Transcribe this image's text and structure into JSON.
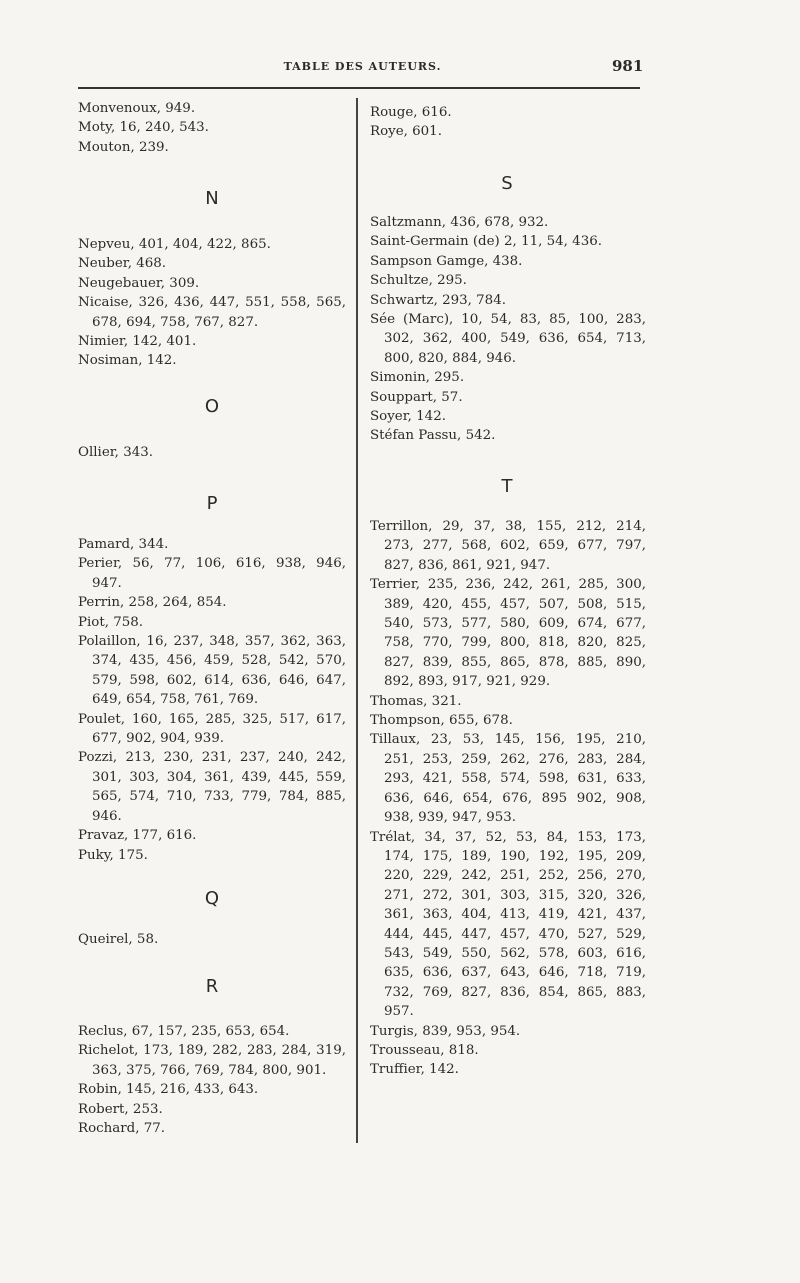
{
  "header": {
    "title": "TABLE DES AUTEURS.",
    "page_number": "981"
  },
  "left": [
    {
      "type": "entries",
      "id": "m",
      "entries": [
        {
          "lines": [
            "Monvenoux, 949."
          ]
        },
        {
          "lines": [
            "Moty, 16, 240, 543."
          ]
        },
        {
          "lines": [
            "Mouton, 239."
          ]
        }
      ]
    },
    {
      "type": "letter",
      "id": "n-head",
      "letter": "N"
    },
    {
      "type": "entries",
      "id": "n",
      "entries": [
        {
          "lines": [
            "Nepveu, 401, 404, 422, 865."
          ]
        },
        {
          "lines": [
            "Neuber, 468."
          ]
        },
        {
          "lines": [
            "Neugebauer, 309."
          ]
        },
        {
          "lines": [
            "Nicaise, 326, 436, 447, 551, 558, 565,",
            "678, 694, 758, 767, 827."
          ]
        },
        {
          "lines": [
            "Nimier, 142, 401."
          ]
        },
        {
          "lines": [
            "Nosiman, 142."
          ]
        }
      ]
    },
    {
      "type": "letter",
      "id": "o-head",
      "letter": "O"
    },
    {
      "type": "entries",
      "id": "o",
      "entries": [
        {
          "lines": [
            "Ollier, 343."
          ]
        }
      ]
    },
    {
      "type": "letter",
      "id": "p-head",
      "letter": "P"
    },
    {
      "type": "entries",
      "id": "p",
      "entries": [
        {
          "lines": [
            "Pamard, 344."
          ]
        },
        {
          "lines": [
            "Perier, 56, 77, 106, 616, 938, 946,",
            "947."
          ]
        },
        {
          "lines": [
            "Perrin, 258, 264, 854."
          ]
        },
        {
          "lines": [
            "Piot, 758."
          ]
        },
        {
          "lines": [
            "Polaillon, 16, 237, 348, 357, 362, 363,",
            "374, 435, 456, 459, 528, 542, 570,",
            "579, 598, 602, 614, 636, 646, 647,",
            "649, 654, 758, 761, 769."
          ]
        },
        {
          "lines": [
            "Poulet, 160, 165, 285, 325, 517, 617,",
            "677, 902, 904, 939."
          ]
        },
        {
          "lines": [
            "Pozzi, 213, 230, 231, 237, 240, 242,",
            "301, 303, 304, 361, 439, 445, 559,",
            "565, 574, 710, 733, 779, 784, 885,",
            "946."
          ]
        },
        {
          "lines": [
            "Pravaz, 177, 616."
          ]
        },
        {
          "lines": [
            "Puky, 175."
          ]
        }
      ]
    },
    {
      "type": "letter",
      "id": "q-head",
      "letter": "Q"
    },
    {
      "type": "entries",
      "id": "q",
      "entries": [
        {
          "lines": [
            "Queirel, 58."
          ]
        }
      ]
    },
    {
      "type": "letter",
      "id": "r-head",
      "letter": "R"
    },
    {
      "type": "entries",
      "id": "r",
      "entries": [
        {
          "lines": [
            "Reclus, 67, 157, 235, 653, 654."
          ]
        },
        {
          "lines": [
            "Richelot, 173, 189, 282, 283, 284, 319,",
            "363, 375, 766, 769, 784, 800, 901."
          ]
        },
        {
          "lines": [
            "Robin, 145, 216, 433, 643."
          ]
        },
        {
          "lines": [
            "Robert, 253."
          ]
        },
        {
          "lines": [
            "Rochard, 77."
          ]
        }
      ]
    }
  ],
  "right": [
    {
      "type": "entries",
      "id": "r2",
      "entries": [
        {
          "lines": [
            "Rouge, 616."
          ]
        },
        {
          "lines": [
            "Roye, 601."
          ]
        }
      ]
    },
    {
      "type": "letter",
      "id": "s-head",
      "letter": "S"
    },
    {
      "type": "entries",
      "id": "s",
      "entries": [
        {
          "lines": [
            "Saltzmann, 436, 678, 932."
          ]
        },
        {
          "lines": [
            "Saint-Germain (de) 2, 11, 54, 436."
          ]
        },
        {
          "lines": [
            "Sampson Gamge, 438."
          ]
        },
        {
          "lines": [
            "Schultze, 295."
          ]
        },
        {
          "lines": [
            "Schwartz, 293, 784."
          ]
        },
        {
          "lines": [
            "Sée (Marc), 10, 54, 83, 85, 100, 283,",
            "302, 362, 400, 549, 636, 654, 713,",
            "800, 820, 884, 946."
          ]
        },
        {
          "lines": [
            "Simonin, 295."
          ]
        },
        {
          "lines": [
            "Souppart, 57."
          ]
        },
        {
          "lines": [
            "Soyer, 142."
          ]
        },
        {
          "lines": [
            "Stéfan Passu, 542."
          ]
        }
      ]
    },
    {
      "type": "letter",
      "id": "t-head",
      "letter": "T"
    },
    {
      "type": "entries",
      "id": "t",
      "entries": [
        {
          "lines": [
            "Terrillon, 29, 37, 38, 155, 212, 214,",
            "273, 277, 568, 602, 659, 677, 797,",
            "827, 836, 861, 921, 947."
          ]
        },
        {
          "lines": [
            "Terrier, 235, 236, 242, 261, 285, 300,",
            "389, 420, 455, 457, 507, 508, 515,",
            "540, 573, 577, 580, 609, 674, 677,",
            "758, 770, 799, 800, 818, 820, 825,",
            "827, 839, 855, 865, 878, 885, 890,",
            "892, 893, 917, 921, 929."
          ]
        },
        {
          "lines": [
            "Thomas, 321."
          ]
        },
        {
          "lines": [
            "Thompson, 655, 678."
          ]
        },
        {
          "lines": [
            "Tillaux, 23, 53, 145, 156, 195, 210,",
            "251, 253, 259, 262, 276, 283, 284,",
            "293, 421, 558, 574, 598, 631, 633,",
            "636, 646, 654, 676, 895 902, 908,",
            "938, 939, 947, 953."
          ]
        },
        {
          "lines": [
            "Trélat, 34, 37, 52, 53, 84, 153, 173,",
            "174, 175, 189, 190, 192, 195, 209,",
            "220, 229, 242, 251, 252, 256, 270,",
            "271, 272, 301, 303, 315, 320, 326,",
            "361, 363, 404, 413, 419, 421, 437,",
            "444, 445, 447, 457, 470, 527, 529,",
            "543, 549, 550, 562, 578, 603, 616,",
            "635, 636, 637, 643, 646, 718, 719,",
            "732, 769, 827, 836, 854, 865, 883,",
            "957."
          ]
        },
        {
          "lines": [
            "Turgis, 839, 953, 954."
          ]
        },
        {
          "lines": [
            "Trousseau, 818."
          ]
        },
        {
          "lines": [
            "Truffier, 142."
          ]
        }
      ]
    }
  ]
}
